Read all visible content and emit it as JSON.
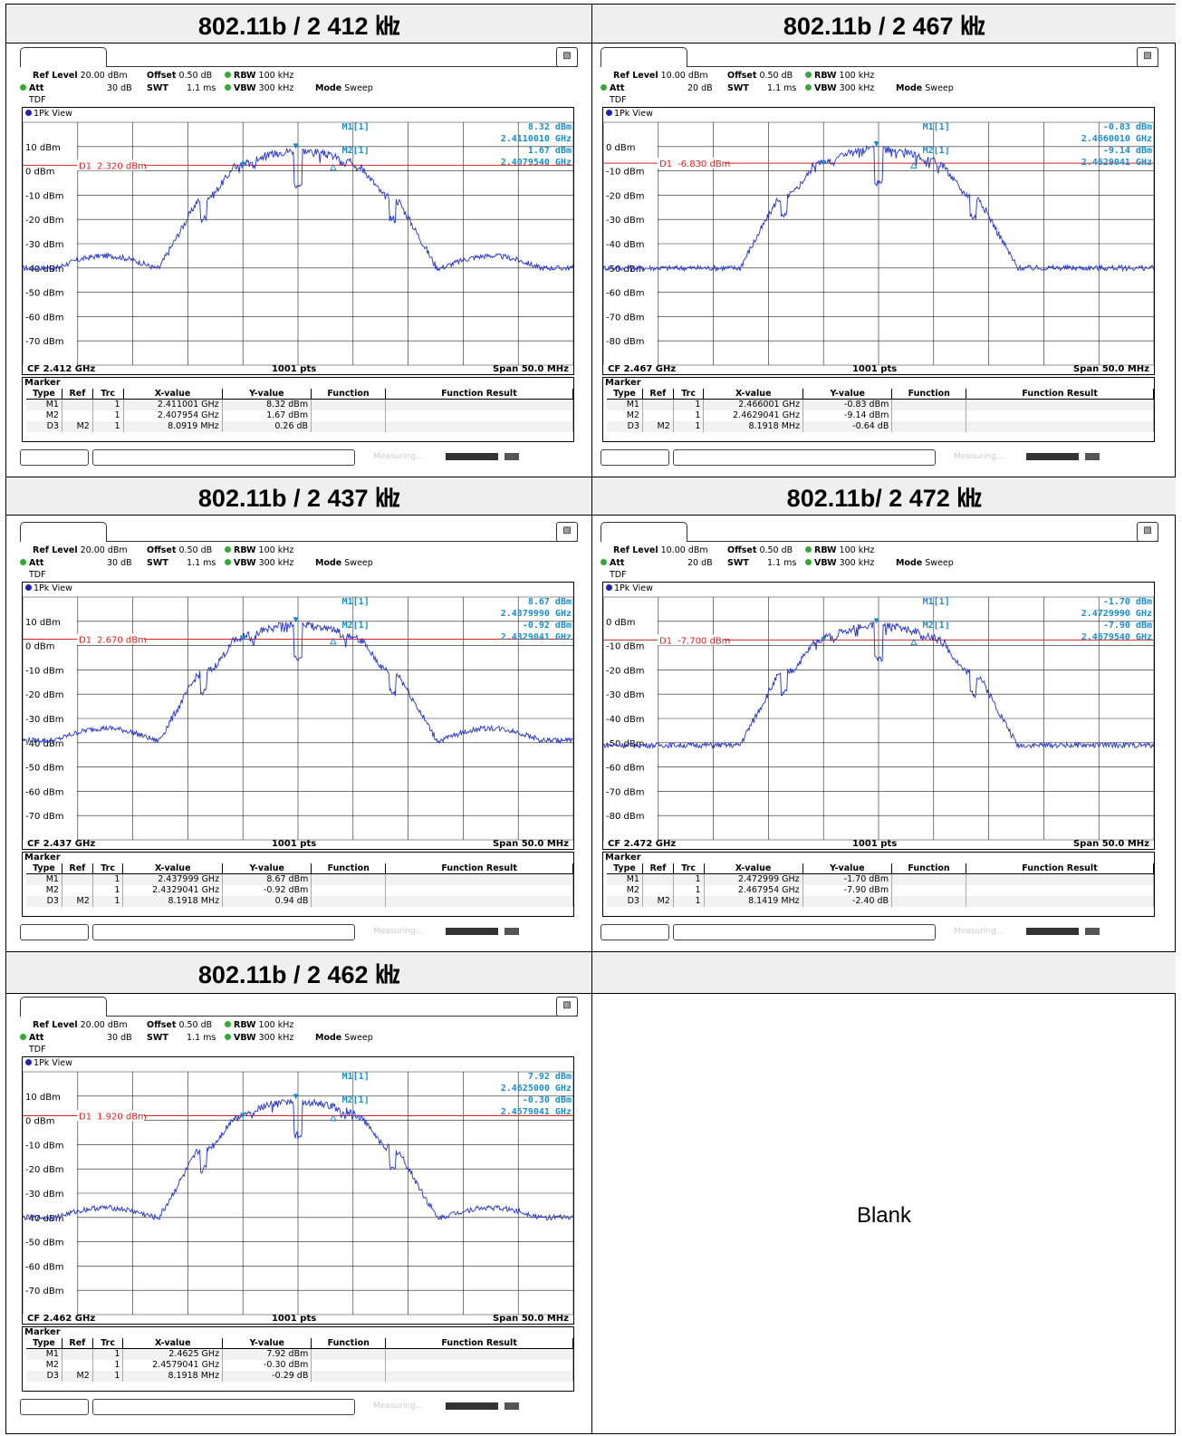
{
  "cells": [
    {
      "title": "802.11b / 2 412 ㎑",
      "chart_data": {
        "type": "line",
        "title": "Spectrum",
        "ref_level": "20.00 dBm",
        "offset": "0.50 dB",
        "rbw": "100 kHz",
        "att": "30 dB",
        "swt": "1.1 ms",
        "vbw": "300 kHz",
        "mode": "Sweep",
        "tdf": "TDF",
        "view": "1Pk View",
        "cf": "CF 2.412 GHz",
        "pts": "1001 pts",
        "span": "Span 50.0 MHz",
        "ytop": 20,
        "ylim": [
          -80,
          20
        ],
        "ylabels": [
          {
            "v": 10,
            "t": "10 dBm"
          },
          {
            "v": 0,
            "t": "0 dBm"
          },
          {
            "v": -10,
            "t": "-10 dBm"
          },
          {
            "v": -20,
            "t": "-20 dBm"
          },
          {
            "v": -30,
            "t": "-30 dBm"
          },
          {
            "v": -40,
            "t": "-40 dBm"
          },
          {
            "v": -50,
            "t": "-50 dBm"
          },
          {
            "v": -60,
            "t": "-60 dBm"
          },
          {
            "v": -70,
            "t": "-70 dBm"
          }
        ],
        "d1": {
          "label": "D1",
          "value": 2.32,
          "text": "2.320 dBm"
        },
        "peak": 8.3,
        "floor": -40,
        "shoulder": -35,
        "readout": [
          "M1[1]",
          "8.32 dBm",
          "2.4110010 GHz",
          "M2[1]",
          "1.67 dBm",
          "2.4079540 GHz"
        ],
        "markers_header": [
          "Type",
          "Ref",
          "Trc",
          "X-value",
          "Y-value",
          "Function",
          "Function Result"
        ],
        "markers": [
          [
            "M1",
            "",
            "1",
            "2.411001 GHz",
            "8.32 dBm",
            "",
            ""
          ],
          [
            "M2",
            "",
            "1",
            "2.407954 GHz",
            "1.67 dBm",
            "",
            ""
          ],
          [
            "D3",
            "M2",
            "1",
            "8.0919 MHz",
            "0.26 dB",
            "",
            ""
          ]
        ],
        "marker_title": "Marker",
        "status": "Measuring..."
      }
    },
    {
      "title": "802.11b / 2 467 ㎑",
      "chart_data": {
        "type": "line",
        "title": "Spectrum",
        "ref_level": "10.00 dBm",
        "offset": "0.50 dB",
        "rbw": "100 kHz",
        "att": "20 dB",
        "swt": "1.1 ms",
        "vbw": "300 kHz",
        "mode": "Sweep",
        "tdf": "TDF",
        "view": "1Pk View",
        "cf": "CF 2.467 GHz",
        "pts": "1001 pts",
        "span": "Span 50.0 MHz",
        "ytop": 10,
        "ylim": [
          -90,
          10
        ],
        "ylabels": [
          {
            "v": 0,
            "t": "0 dBm"
          },
          {
            "v": -10,
            "t": "-10 dBm"
          },
          {
            "v": -20,
            "t": "-20 dBm"
          },
          {
            "v": -30,
            "t": "-30 dBm"
          },
          {
            "v": -40,
            "t": "-40 dBm"
          },
          {
            "v": -50,
            "t": "-50 dBm"
          },
          {
            "v": -60,
            "t": "-60 dBm"
          },
          {
            "v": -70,
            "t": "-70 dBm"
          },
          {
            "v": -80,
            "t": "-80 dBm"
          }
        ],
        "d1": {
          "label": "D1",
          "value": -6.83,
          "text": "-6.830 dBm"
        },
        "peak": -0.8,
        "floor": -50,
        "shoulder": -50,
        "readout": [
          "M1[1]",
          "-0.83 dBm",
          "2.4660010 GHz",
          "M2[1]",
          "-9.14 dBm",
          "2.4629041 GHz"
        ],
        "markers_header": [
          "Type",
          "Ref",
          "Trc",
          "X-value",
          "Y-value",
          "Function",
          "Function Result"
        ],
        "markers": [
          [
            "M1",
            "",
            "1",
            "2.466001 GHz",
            "-0.83 dBm",
            "",
            ""
          ],
          [
            "M2",
            "",
            "1",
            "2.4629041 GHz",
            "-9.14 dBm",
            "",
            ""
          ],
          [
            "D3",
            "M2",
            "1",
            "8.1918 MHz",
            "-0.64 dB",
            "",
            ""
          ]
        ],
        "marker_title": "Marker",
        "status": "Measuring..."
      }
    },
    {
      "title": "802.11b / 2 437 ㎑",
      "chart_data": {
        "type": "line",
        "title": "Spectrum",
        "ref_level": "20.00 dBm",
        "offset": "0.50 dB",
        "rbw": "100 kHz",
        "att": "30 dB",
        "swt": "1.1 ms",
        "vbw": "300 kHz",
        "mode": "Sweep",
        "tdf": "TDF",
        "view": "1Pk View",
        "cf": "CF 2.437 GHz",
        "pts": "1001 pts",
        "span": "Span 50.0 MHz",
        "ytop": 20,
        "ylim": [
          -80,
          20
        ],
        "ylabels": [
          {
            "v": 10,
            "t": "10 dBm"
          },
          {
            "v": 0,
            "t": "0 dBm"
          },
          {
            "v": -10,
            "t": "-10 dBm"
          },
          {
            "v": -20,
            "t": "-20 dBm"
          },
          {
            "v": -30,
            "t": "-30 dBm"
          },
          {
            "v": -40,
            "t": "-40 dBm"
          },
          {
            "v": -50,
            "t": "-50 dBm"
          },
          {
            "v": -60,
            "t": "-60 dBm"
          },
          {
            "v": -70,
            "t": "-70 dBm"
          }
        ],
        "d1": {
          "label": "D1",
          "value": 2.67,
          "text": "2.670 dBm"
        },
        "peak": 8.7,
        "floor": -39,
        "shoulder": -34,
        "readout": [
          "M1[1]",
          "8.67 dBm",
          "2.4379990 GHz",
          "M2[1]",
          "-0.92 dBm",
          "2.4329041 GHz"
        ],
        "markers_header": [
          "Type",
          "Ref",
          "Trc",
          "X-value",
          "Y-value",
          "Function",
          "Function Result"
        ],
        "markers": [
          [
            "M1",
            "",
            "1",
            "2.437999 GHz",
            "8.67 dBm",
            "",
            ""
          ],
          [
            "M2",
            "",
            "1",
            "2.4329041 GHz",
            "-0.92 dBm",
            "",
            ""
          ],
          [
            "D3",
            "M2",
            "1",
            "8.1918 MHz",
            "0.94 dB",
            "",
            ""
          ]
        ],
        "marker_title": "Marker",
        "status": "Measuring..."
      }
    },
    {
      "title": "802.11b/ 2 472 ㎑",
      "chart_data": {
        "type": "line",
        "title": "Spectrum",
        "ref_level": "10.00 dBm",
        "offset": "0.50 dB",
        "rbw": "100 kHz",
        "att": "20 dB",
        "swt": "1.1 ms",
        "vbw": "300 kHz",
        "mode": "Sweep",
        "tdf": "TDF",
        "view": "1Pk View",
        "cf": "CF 2.472 GHz",
        "pts": "1001 pts",
        "span": "Span 50.0 MHz",
        "ytop": 10,
        "ylim": [
          -90,
          10
        ],
        "ylabels": [
          {
            "v": 0,
            "t": "0 dBm"
          },
          {
            "v": -10,
            "t": "-10 dBm"
          },
          {
            "v": -20,
            "t": "-20 dBm"
          },
          {
            "v": -30,
            "t": "-30 dBm"
          },
          {
            "v": -40,
            "t": "-40 dBm"
          },
          {
            "v": -50,
            "t": "-50 dBm"
          },
          {
            "v": -60,
            "t": "-60 dBm"
          },
          {
            "v": -70,
            "t": "-70 dBm"
          },
          {
            "v": -80,
            "t": "-80 dBm"
          }
        ],
        "d1": {
          "label": "D1",
          "value": -7.7,
          "text": "-7.700 dBm"
        },
        "peak": -1.7,
        "floor": -51,
        "shoulder": -51,
        "readout": [
          "M1[1]",
          "-1.70 dBm",
          "2.4729990 GHz",
          "M2[1]",
          "-7.90 dBm",
          "2.4679540 GHz"
        ],
        "markers_header": [
          "Type",
          "Ref",
          "Trc",
          "X-value",
          "Y-value",
          "Function",
          "Function Result"
        ],
        "markers": [
          [
            "M1",
            "",
            "1",
            "2.472999 GHz",
            "-1.70 dBm",
            "",
            ""
          ],
          [
            "M2",
            "",
            "1",
            "2.467954 GHz",
            "-7.90 dBm",
            "",
            ""
          ],
          [
            "D3",
            "M2",
            "1",
            "8.1419 MHz",
            "-2.40 dB",
            "",
            ""
          ]
        ],
        "marker_title": "Marker",
        "status": "Measuring..."
      }
    },
    {
      "title": "802.11b / 2 462 ㎑",
      "chart_data": {
        "type": "line",
        "title": "Spectrum",
        "ref_level": "20.00 dBm",
        "offset": "0.50 dB",
        "rbw": "100 kHz",
        "att": "30 dB",
        "swt": "1.1 ms",
        "vbw": "300 kHz",
        "mode": "Sweep",
        "tdf": "TDF",
        "view": "1Pk View",
        "cf": "CF 2.462 GHz",
        "pts": "1001 pts",
        "span": "Span 50.0 MHz",
        "ytop": 20,
        "ylim": [
          -80,
          20
        ],
        "ylabels": [
          {
            "v": 10,
            "t": "10 dBm"
          },
          {
            "v": 0,
            "t": "0 dBm"
          },
          {
            "v": -10,
            "t": "-10 dBm"
          },
          {
            "v": -20,
            "t": "-20 dBm"
          },
          {
            "v": -30,
            "t": "-30 dBm"
          },
          {
            "v": -40,
            "t": "-40 dBm"
          },
          {
            "v": -50,
            "t": "-50 dBm"
          },
          {
            "v": -60,
            "t": "-60 dBm"
          },
          {
            "v": -70,
            "t": "-70 dBm"
          }
        ],
        "d1": {
          "label": "D1",
          "value": 1.92,
          "text": "1.920 dBm"
        },
        "peak": 7.9,
        "floor": -40,
        "shoulder": -36,
        "readout": [
          "M1[1]",
          "7.92 dBm",
          "2.4625000 GHz",
          "M2[1]",
          "-0.30 dBm",
          "2.4579041 GHz"
        ],
        "markers_header": [
          "Type",
          "Ref",
          "Trc",
          "X-value",
          "Y-value",
          "Function",
          "Function Result"
        ],
        "markers": [
          [
            "M1",
            "",
            "1",
            "2.4625 GHz",
            "7.92 dBm",
            "",
            ""
          ],
          [
            "M2",
            "",
            "1",
            "2.4579041 GHz",
            "-0.30 dBm",
            "",
            ""
          ],
          [
            "D3",
            "M2",
            "1",
            "8.1918 MHz",
            "-0.29 dB",
            "",
            ""
          ]
        ],
        "marker_title": "Marker",
        "status": "Measuring..."
      }
    }
  ],
  "blank_text": "Blank",
  "colors": {
    "trace": "#2233cc",
    "d1_line": "#dd2222",
    "readout": "#1a8fd0",
    "grid": "#000000"
  }
}
